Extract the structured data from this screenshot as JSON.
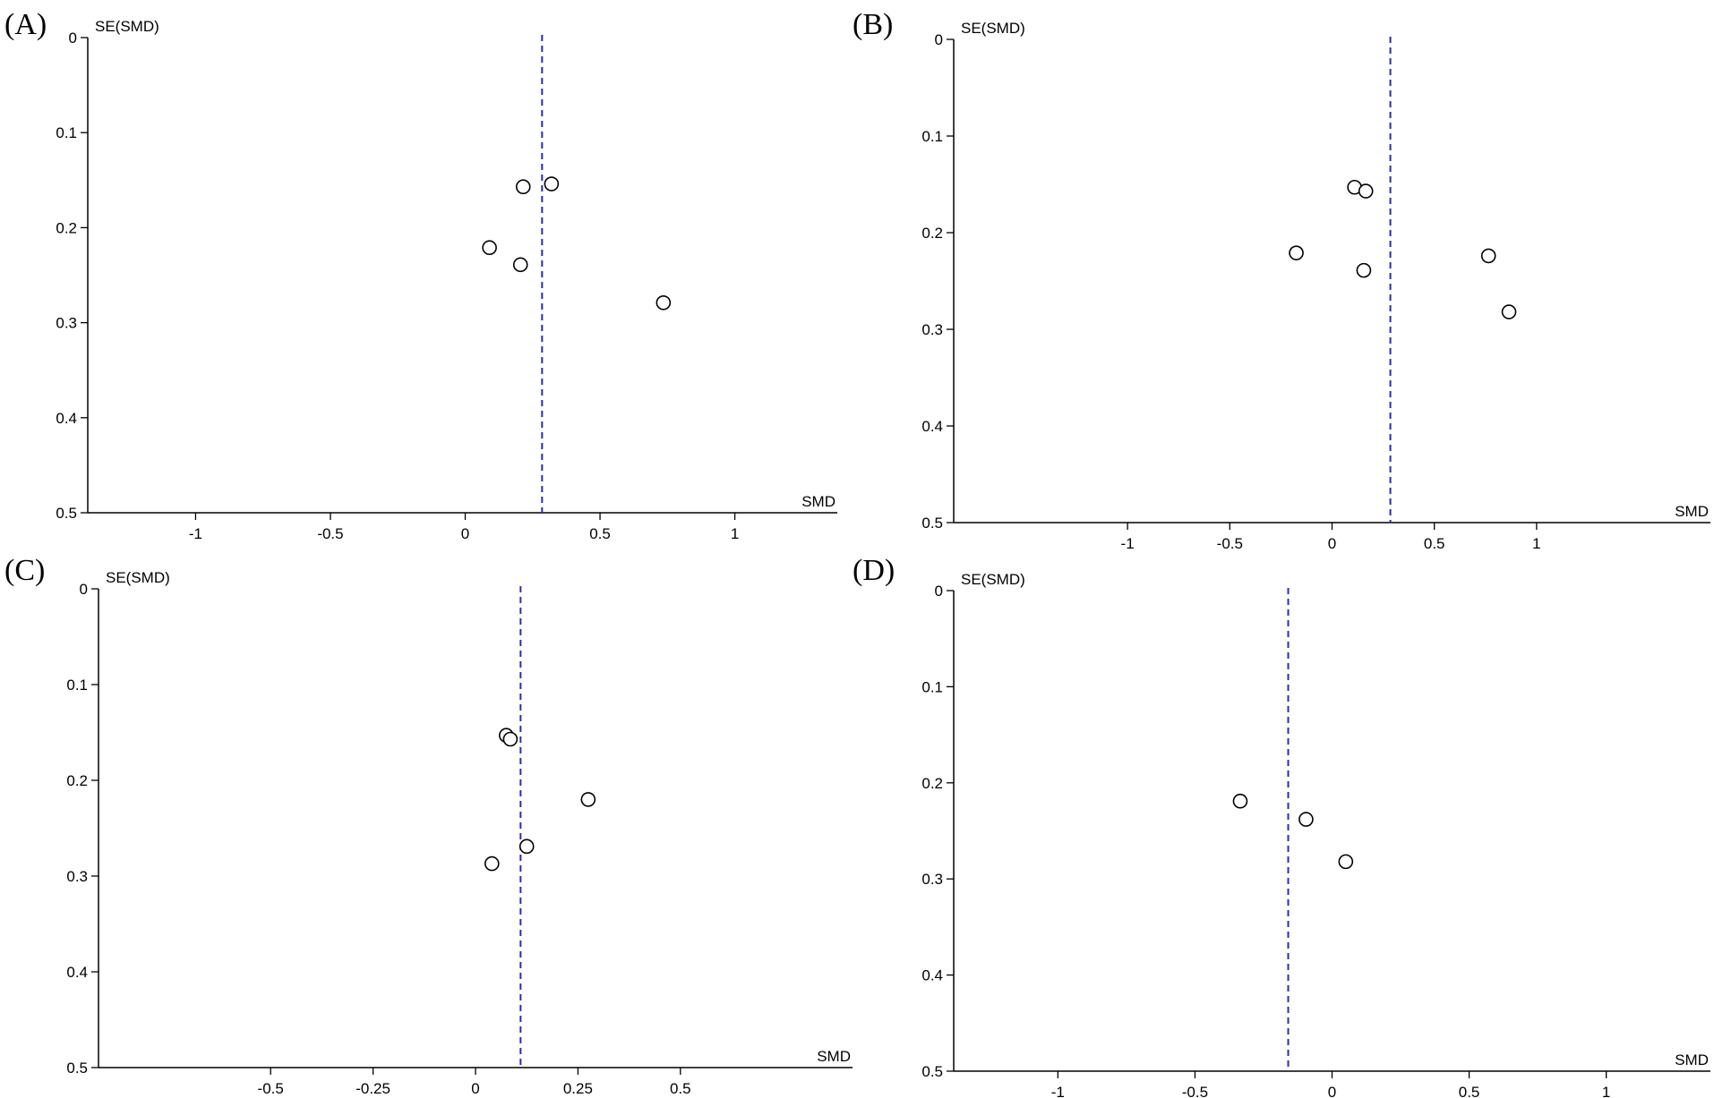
{
  "chart_data": [
    {
      "type": "scatter",
      "panel_label": "(A)",
      "xlabel": "SMD",
      "ylabel": "SE(SMD)",
      "y_inverted": true,
      "ylim": [
        0,
        0.5
      ],
      "xlim": [
        -1.4,
        1.38
      ],
      "x_ticks": [
        -1,
        -0.5,
        0,
        0.5,
        1
      ],
      "x_tick_labels": [
        "-1",
        "-0.5",
        "0",
        "0.5",
        "1"
      ],
      "y_ticks": [
        0,
        0.1,
        0.2,
        0.3,
        0.4,
        0.5
      ],
      "y_tick_labels": [
        "0",
        "0.1",
        "0.2",
        "0.3",
        "0.4",
        "0.5"
      ],
      "reference_line_x": 0.285,
      "points": [
        {
          "x": 0.32,
          "y": 0.154
        },
        {
          "x": 0.215,
          "y": 0.157
        },
        {
          "x": 0.09,
          "y": 0.221
        },
        {
          "x": 0.205,
          "y": 0.239
        },
        {
          "x": 0.735,
          "y": 0.279
        }
      ]
    },
    {
      "type": "scatter",
      "panel_label": "(B)",
      "xlabel": "SMD",
      "ylabel": "SE(SMD)",
      "y_inverted": true,
      "ylim": [
        0,
        0.5
      ],
      "xlim": [
        -1.85,
        1.85
      ],
      "x_ticks": [
        -1,
        -0.5,
        0,
        0.5,
        1
      ],
      "x_tick_labels": [
        "-1",
        "-0.5",
        "0",
        "0.5",
        "1"
      ],
      "y_ticks": [
        0,
        0.1,
        0.2,
        0.3,
        0.4,
        0.5
      ],
      "y_tick_labels": [
        "0",
        "0.1",
        "0.2",
        "0.3",
        "0.4",
        "0.5"
      ],
      "reference_line_x": 0.285,
      "points": [
        {
          "x": 0.11,
          "y": 0.153
        },
        {
          "x": 0.165,
          "y": 0.157
        },
        {
          "x": -0.175,
          "y": 0.221
        },
        {
          "x": 0.155,
          "y": 0.239
        },
        {
          "x": 0.765,
          "y": 0.224
        },
        {
          "x": 0.865,
          "y": 0.282
        }
      ]
    },
    {
      "type": "scatter",
      "panel_label": "(C)",
      "xlabel": "SMD",
      "ylabel": "SE(SMD)",
      "y_inverted": true,
      "ylim": [
        0,
        0.5
      ],
      "xlim": [
        -0.92,
        0.92
      ],
      "x_ticks": [
        -0.5,
        -0.25,
        0,
        0.25,
        0.5
      ],
      "x_tick_labels": [
        "-0.5",
        "-0.25",
        "0",
        "0.25",
        "0.5"
      ],
      "y_ticks": [
        0,
        0.1,
        0.2,
        0.3,
        0.4,
        0.5
      ],
      "y_tick_labels": [
        "0",
        "0.1",
        "0.2",
        "0.3",
        "0.4",
        "0.5"
      ],
      "reference_line_x": 0.11,
      "points": [
        {
          "x": 0.075,
          "y": 0.153
        },
        {
          "x": 0.085,
          "y": 0.157
        },
        {
          "x": 0.275,
          "y": 0.22
        },
        {
          "x": 0.125,
          "y": 0.269
        },
        {
          "x": 0.04,
          "y": 0.287
        }
      ]
    },
    {
      "type": "scatter",
      "panel_label": "(D)",
      "xlabel": "SMD",
      "ylabel": "SE(SMD)",
      "y_inverted": true,
      "ylim": [
        0,
        0.5
      ],
      "xlim": [
        -1.38,
        1.38
      ],
      "x_ticks": [
        -1,
        -0.5,
        0,
        0.5,
        1
      ],
      "x_tick_labels": [
        "-1",
        "-0.5",
        "0",
        "0.5",
        "1"
      ],
      "y_ticks": [
        0,
        0.1,
        0.2,
        0.3,
        0.4,
        0.5
      ],
      "y_tick_labels": [
        "0",
        "0.1",
        "0.2",
        "0.3",
        "0.4",
        "0.5"
      ],
      "reference_line_x": -0.16,
      "points": [
        {
          "x": -0.335,
          "y": 0.219
        },
        {
          "x": -0.095,
          "y": 0.238
        },
        {
          "x": 0.05,
          "y": 0.282
        }
      ]
    }
  ],
  "colors": {
    "reference_line": "#2b2bb8",
    "axes": "#000000",
    "marker_stroke": "#000000",
    "marker_fill": "#ffffff"
  }
}
